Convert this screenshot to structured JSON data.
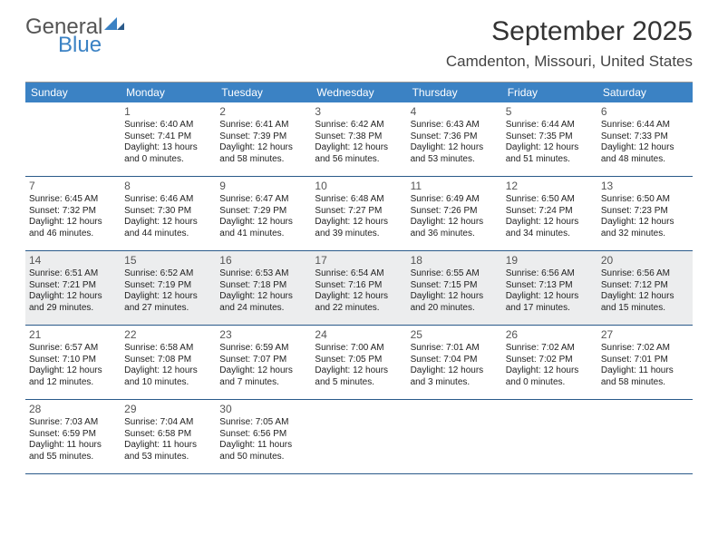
{
  "logo": {
    "text_top": "General",
    "text_bottom": "Blue",
    "color_top": "#555555",
    "color_bottom": "#3b82c4"
  },
  "title": "September 2025",
  "subtitle": "Camdenton, Missouri, United States",
  "colors": {
    "header_bg": "#3b82c4",
    "header_text": "#ffffff",
    "cell_border": "#2a5a8a",
    "shaded_bg": "#ecedee",
    "body_bg": "#ffffff",
    "text": "#222222",
    "daynum": "#555555"
  },
  "fonts": {
    "title_size": 30,
    "subtitle_size": 17,
    "dayhead_size": 12,
    "daynum_size": 12,
    "body_size": 10
  },
  "day_headers": [
    "Sunday",
    "Monday",
    "Tuesday",
    "Wednesday",
    "Thursday",
    "Friday",
    "Saturday"
  ],
  "leading_blanks": 1,
  "days": [
    {
      "n": 1,
      "sunrise": "6:40 AM",
      "sunset": "7:41 PM",
      "daylight": "13 hours and 0 minutes."
    },
    {
      "n": 2,
      "sunrise": "6:41 AM",
      "sunset": "7:39 PM",
      "daylight": "12 hours and 58 minutes."
    },
    {
      "n": 3,
      "sunrise": "6:42 AM",
      "sunset": "7:38 PM",
      "daylight": "12 hours and 56 minutes."
    },
    {
      "n": 4,
      "sunrise": "6:43 AM",
      "sunset": "7:36 PM",
      "daylight": "12 hours and 53 minutes."
    },
    {
      "n": 5,
      "sunrise": "6:44 AM",
      "sunset": "7:35 PM",
      "daylight": "12 hours and 51 minutes."
    },
    {
      "n": 6,
      "sunrise": "6:44 AM",
      "sunset": "7:33 PM",
      "daylight": "12 hours and 48 minutes."
    },
    {
      "n": 7,
      "sunrise": "6:45 AM",
      "sunset": "7:32 PM",
      "daylight": "12 hours and 46 minutes."
    },
    {
      "n": 8,
      "sunrise": "6:46 AM",
      "sunset": "7:30 PM",
      "daylight": "12 hours and 44 minutes."
    },
    {
      "n": 9,
      "sunrise": "6:47 AM",
      "sunset": "7:29 PM",
      "daylight": "12 hours and 41 minutes."
    },
    {
      "n": 10,
      "sunrise": "6:48 AM",
      "sunset": "7:27 PM",
      "daylight": "12 hours and 39 minutes."
    },
    {
      "n": 11,
      "sunrise": "6:49 AM",
      "sunset": "7:26 PM",
      "daylight": "12 hours and 36 minutes."
    },
    {
      "n": 12,
      "sunrise": "6:50 AM",
      "sunset": "7:24 PM",
      "daylight": "12 hours and 34 minutes."
    },
    {
      "n": 13,
      "sunrise": "6:50 AM",
      "sunset": "7:23 PM",
      "daylight": "12 hours and 32 minutes."
    },
    {
      "n": 14,
      "sunrise": "6:51 AM",
      "sunset": "7:21 PM",
      "daylight": "12 hours and 29 minutes."
    },
    {
      "n": 15,
      "sunrise": "6:52 AM",
      "sunset": "7:19 PM",
      "daylight": "12 hours and 27 minutes."
    },
    {
      "n": 16,
      "sunrise": "6:53 AM",
      "sunset": "7:18 PM",
      "daylight": "12 hours and 24 minutes."
    },
    {
      "n": 17,
      "sunrise": "6:54 AM",
      "sunset": "7:16 PM",
      "daylight": "12 hours and 22 minutes."
    },
    {
      "n": 18,
      "sunrise": "6:55 AM",
      "sunset": "7:15 PM",
      "daylight": "12 hours and 20 minutes."
    },
    {
      "n": 19,
      "sunrise": "6:56 AM",
      "sunset": "7:13 PM",
      "daylight": "12 hours and 17 minutes."
    },
    {
      "n": 20,
      "sunrise": "6:56 AM",
      "sunset": "7:12 PM",
      "daylight": "12 hours and 15 minutes."
    },
    {
      "n": 21,
      "sunrise": "6:57 AM",
      "sunset": "7:10 PM",
      "daylight": "12 hours and 12 minutes."
    },
    {
      "n": 22,
      "sunrise": "6:58 AM",
      "sunset": "7:08 PM",
      "daylight": "12 hours and 10 minutes."
    },
    {
      "n": 23,
      "sunrise": "6:59 AM",
      "sunset": "7:07 PM",
      "daylight": "12 hours and 7 minutes."
    },
    {
      "n": 24,
      "sunrise": "7:00 AM",
      "sunset": "7:05 PM",
      "daylight": "12 hours and 5 minutes."
    },
    {
      "n": 25,
      "sunrise": "7:01 AM",
      "sunset": "7:04 PM",
      "daylight": "12 hours and 3 minutes."
    },
    {
      "n": 26,
      "sunrise": "7:02 AM",
      "sunset": "7:02 PM",
      "daylight": "12 hours and 0 minutes."
    },
    {
      "n": 27,
      "sunrise": "7:02 AM",
      "sunset": "7:01 PM",
      "daylight": "11 hours and 58 minutes."
    },
    {
      "n": 28,
      "sunrise": "7:03 AM",
      "sunset": "6:59 PM",
      "daylight": "11 hours and 55 minutes."
    },
    {
      "n": 29,
      "sunrise": "7:04 AM",
      "sunset": "6:58 PM",
      "daylight": "11 hours and 53 minutes."
    },
    {
      "n": 30,
      "sunrise": "7:05 AM",
      "sunset": "6:56 PM",
      "daylight": "11 hours and 50 minutes."
    }
  ],
  "labels": {
    "sunrise": "Sunrise:",
    "sunset": "Sunset:",
    "daylight": "Daylight:"
  },
  "shaded_rows": [
    2
  ]
}
